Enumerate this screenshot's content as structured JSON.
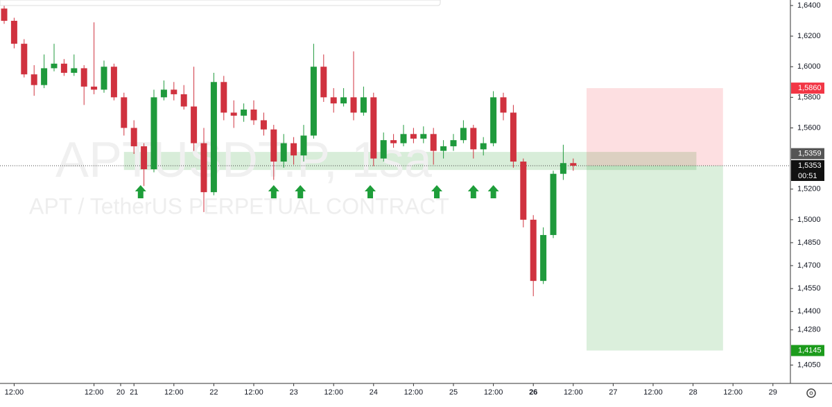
{
  "chart_data": {
    "type": "candlestick",
    "watermark": "APTUSDT.P, 1sa",
    "subtitle": "APT / TetherUS PERPETUAL CONTRACT",
    "up_color": "#1f9a3c",
    "down_color": "#d0323f",
    "x": [
      -15,
      -12,
      -9,
      -6,
      -3,
      0,
      3,
      6,
      9,
      12,
      15,
      18,
      21,
      24,
      27,
      30,
      33,
      36,
      39,
      42,
      45,
      48,
      51,
      54,
      57,
      60,
      63,
      66,
      69,
      72,
      75,
      78,
      81,
      84,
      87,
      90,
      93,
      96,
      99,
      102,
      105,
      108,
      111,
      114,
      117,
      120,
      123,
      126,
      129,
      132,
      135,
      138,
      141,
      144,
      147,
      150,
      153,
      156
    ],
    "open": [
      1.638,
      1.63,
      1.615,
      1.595,
      1.588,
      1.599,
      1.602,
      1.596,
      1.599,
      1.587,
      1.585,
      1.6,
      1.58,
      1.56,
      1.548,
      1.533,
      1.58,
      1.585,
      1.582,
      1.574,
      1.55,
      1.518,
      1.59,
      1.57,
      1.568,
      1.572,
      1.565,
      1.559,
      1.538,
      1.55,
      1.542,
      1.555,
      1.6,
      1.58,
      1.576,
      1.58,
      1.57,
      1.58,
      1.54,
      1.552,
      1.55,
      1.556,
      1.553,
      1.556,
      1.545,
      1.548,
      1.552,
      1.56,
      1.546,
      1.55,
      1.58,
      1.57,
      1.538,
      1.5,
      1.46,
      1.49,
      1.53,
      1.537
    ],
    "high": [
      1.64,
      1.632,
      1.618,
      1.601,
      1.608,
      1.615,
      1.605,
      1.608,
      1.601,
      1.629,
      1.604,
      1.602,
      1.583,
      1.565,
      1.55,
      1.585,
      1.591,
      1.59,
      1.588,
      1.6,
      1.56,
      1.596,
      1.594,
      1.578,
      1.576,
      1.578,
      1.57,
      1.562,
      1.556,
      1.554,
      1.562,
      1.615,
      1.608,
      1.586,
      1.586,
      1.61,
      1.587,
      1.583,
      1.557,
      1.556,
      1.562,
      1.56,
      1.561,
      1.56,
      1.552,
      1.556,
      1.565,
      1.562,
      1.554,
      1.584,
      1.583,
      1.575,
      1.54,
      1.503,
      1.495,
      1.532,
      1.549,
      1.54
    ],
    "low": [
      1.628,
      1.612,
      1.593,
      1.581,
      1.586,
      1.597,
      1.594,
      1.594,
      1.575,
      1.582,
      1.583,
      1.578,
      1.555,
      1.543,
      1.522,
      1.531,
      1.578,
      1.578,
      1.572,
      1.545,
      1.505,
      1.516,
      1.565,
      1.56,
      1.564,
      1.562,
      1.555,
      1.526,
      1.534,
      1.536,
      1.538,
      1.553,
      1.577,
      1.57,
      1.574,
      1.565,
      1.568,
      1.535,
      1.538,
      1.547,
      1.548,
      1.55,
      1.55,
      1.536,
      1.54,
      1.545,
      1.55,
      1.54,
      1.542,
      1.548,
      1.565,
      1.534,
      1.495,
      1.45,
      1.458,
      1.488,
      1.526,
      1.532
    ],
    "close": [
      1.63,
      1.615,
      1.595,
      1.588,
      1.599,
      1.602,
      1.596,
      1.599,
      1.587,
      1.585,
      1.6,
      1.58,
      1.56,
      1.548,
      1.533,
      1.58,
      1.585,
      1.582,
      1.574,
      1.55,
      1.518,
      1.59,
      1.57,
      1.568,
      1.572,
      1.565,
      1.559,
      1.538,
      1.55,
      1.542,
      1.555,
      1.6,
      1.58,
      1.576,
      1.58,
      1.57,
      1.58,
      1.54,
      1.552,
      1.55,
      1.556,
      1.553,
      1.556,
      1.545,
      1.548,
      1.552,
      1.56,
      1.546,
      1.55,
      1.58,
      1.57,
      1.538,
      1.5,
      1.46,
      1.49,
      1.53,
      1.537,
      1.5353
    ],
    "xlim": [
      -16.25,
      221.25
    ],
    "xticks": [
      {
        "value": -12,
        "label": "12:00"
      },
      20,
      {
        "value": 12,
        "label": "12:00"
      },
      {
        "value": 24,
        "label": "21"
      },
      {
        "value": 36,
        "label": "12:00"
      },
      {
        "value": 48,
        "label": "22"
      },
      {
        "value": 60,
        "label": "12:00"
      },
      {
        "value": 72,
        "label": "23"
      },
      {
        "value": 84,
        "label": "12:00"
      },
      {
        "value": 96,
        "label": "24"
      },
      {
        "value": 108,
        "label": "12:00"
      },
      {
        "value": 120,
        "label": "25"
      },
      {
        "value": 132,
        "label": "12:00"
      },
      {
        "value": 144,
        "label": "26"
      },
      {
        "value": 156,
        "label": "12:00"
      },
      {
        "value": 168,
        "label": "27"
      },
      {
        "value": 180,
        "label": "12:00"
      },
      {
        "value": 192,
        "label": "28"
      },
      {
        "value": 204,
        "label": "12:00"
      },
      {
        "value": 216,
        "label": "29"
      }
    ],
    "ylim": [
      1.393,
      1.6436
    ],
    "yticks": [
      {
        "value": 1.64,
        "label": "1,6400"
      },
      {
        "value": 1.62,
        "label": "1,6200"
      },
      {
        "value": 1.6,
        "label": "1,6000"
      },
      {
        "value": 1.58,
        "label": "1,5800"
      },
      {
        "value": 1.56,
        "label": "1,5600"
      },
      {
        "value": 1.52,
        "label": "1,5200"
      },
      {
        "value": 1.5,
        "label": "1,5000"
      },
      {
        "value": 1.485,
        "label": "1,4850"
      },
      {
        "value": 1.47,
        "label": "1,4700"
      },
      {
        "value": 1.455,
        "label": "1,4550"
      },
      {
        "value": 1.44,
        "label": "1,4400"
      },
      {
        "value": 1.428,
        "label": "1,4280"
      },
      {
        "value": 1.405,
        "label": "1,4050"
      }
    ],
    "zone": {
      "start": 21,
      "end": 193,
      "low": 1.5325,
      "high": 1.5443
    },
    "markers_x": [
      26,
      66,
      74,
      95,
      115,
      126,
      132
    ],
    "position": {
      "start": 160,
      "end": 201,
      "entry": 1.5353,
      "stop": {
        "value": 1.586,
        "label": "1,5860"
      },
      "target": {
        "value": 1.4145,
        "label": "1,4145"
      }
    },
    "mark_price": {
      "value": 1.5359,
      "label": "1,5359"
    },
    "last_price": {
      "value": 1.5353,
      "label": "1,5353"
    },
    "countdown": "00:51"
  }
}
